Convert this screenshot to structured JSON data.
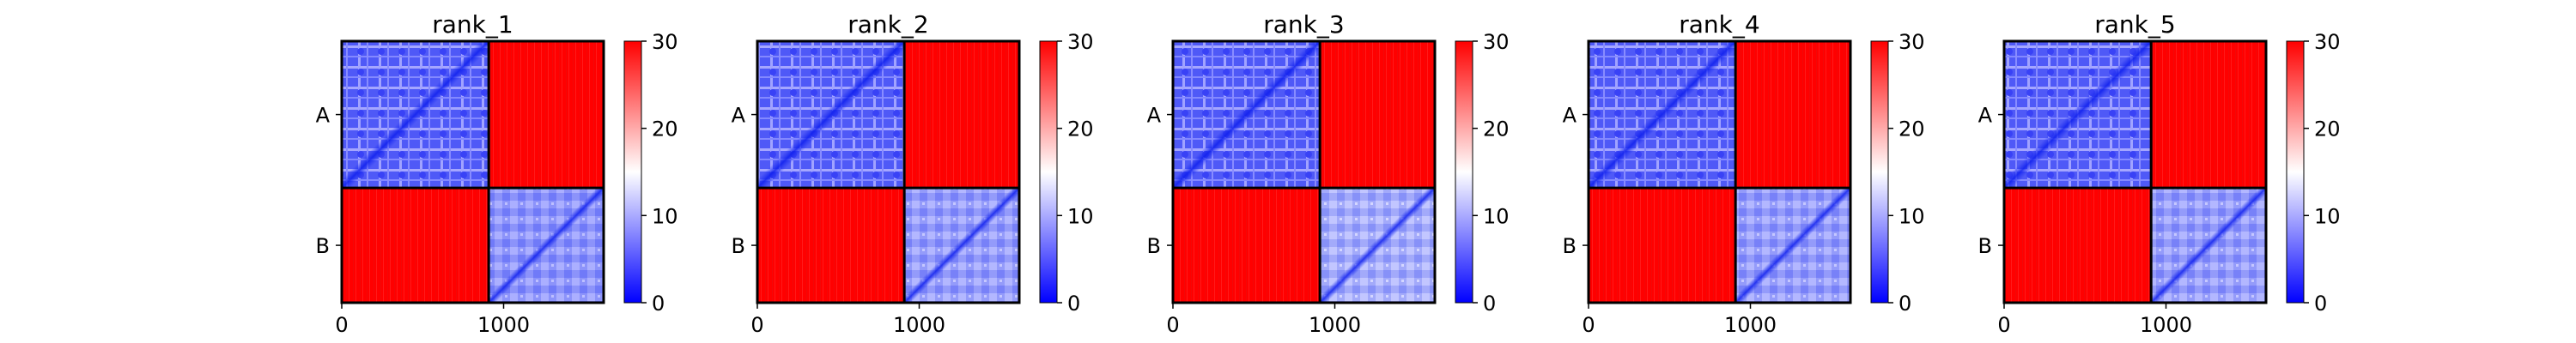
{
  "chart_data": [
    {
      "type": "heatmap",
      "title": "rank_1",
      "x_ticks": [
        "0",
        "1000"
      ],
      "x_tick_values": [
        0,
        1000
      ],
      "x_range": [
        0,
        1618
      ],
      "y_tick_labels": [
        "A",
        "B"
      ],
      "chain_boundary": 908,
      "block_values": {
        "A-A": 5,
        "A-B": 30,
        "B-A": 30,
        "B-B": 8
      },
      "colorbar": {
        "min": 0,
        "max": 30,
        "ticks": [
          "0",
          "10",
          "20",
          "30"
        ],
        "colormap": "bwr"
      }
    },
    {
      "type": "heatmap",
      "title": "rank_2",
      "x_ticks": [
        "0",
        "1000"
      ],
      "x_tick_values": [
        0,
        1000
      ],
      "x_range": [
        0,
        1618
      ],
      "y_tick_labels": [
        "A",
        "B"
      ],
      "chain_boundary": 908,
      "block_values": {
        "A-A": 5,
        "A-B": 30,
        "B-A": 30,
        "B-B": 9
      },
      "colorbar": {
        "min": 0,
        "max": 30,
        "ticks": [
          "0",
          "10",
          "20",
          "30"
        ],
        "colormap": "bwr"
      }
    },
    {
      "type": "heatmap",
      "title": "rank_3",
      "x_ticks": [
        "0",
        "1000"
      ],
      "x_tick_values": [
        0,
        1000
      ],
      "x_range": [
        0,
        1618
      ],
      "y_tick_labels": [
        "A",
        "B"
      ],
      "chain_boundary": 908,
      "block_values": {
        "A-A": 5,
        "A-B": 30,
        "B-A": 30,
        "B-B": 11
      },
      "colorbar": {
        "min": 0,
        "max": 30,
        "ticks": [
          "0",
          "10",
          "20",
          "30"
        ],
        "colormap": "bwr"
      }
    },
    {
      "type": "heatmap",
      "title": "rank_4",
      "x_ticks": [
        "0",
        "1000"
      ],
      "x_tick_values": [
        0,
        1000
      ],
      "x_range": [
        0,
        1618
      ],
      "y_tick_labels": [
        "A",
        "B"
      ],
      "chain_boundary": 908,
      "block_values": {
        "A-A": 5,
        "A-B": 30,
        "B-A": 30,
        "B-B": 9
      },
      "colorbar": {
        "min": 0,
        "max": 30,
        "ticks": [
          "0",
          "10",
          "20",
          "30"
        ],
        "colormap": "bwr"
      }
    },
    {
      "type": "heatmap",
      "title": "rank_5",
      "x_ticks": [
        "0",
        "1000"
      ],
      "x_tick_values": [
        0,
        1000
      ],
      "x_range": [
        0,
        1618
      ],
      "y_tick_labels": [
        "A",
        "B"
      ],
      "chain_boundary": 908,
      "block_values": {
        "A-A": 5,
        "A-B": 30,
        "B-A": 30,
        "B-B": 9
      },
      "colorbar": {
        "min": 0,
        "max": 30,
        "ticks": [
          "0",
          "10",
          "20",
          "30"
        ],
        "colormap": "bwr"
      }
    }
  ],
  "colors": {
    "low": "#0000ff",
    "mid": "#ffffff",
    "high": "#ff0000",
    "boundary": "#000000"
  }
}
